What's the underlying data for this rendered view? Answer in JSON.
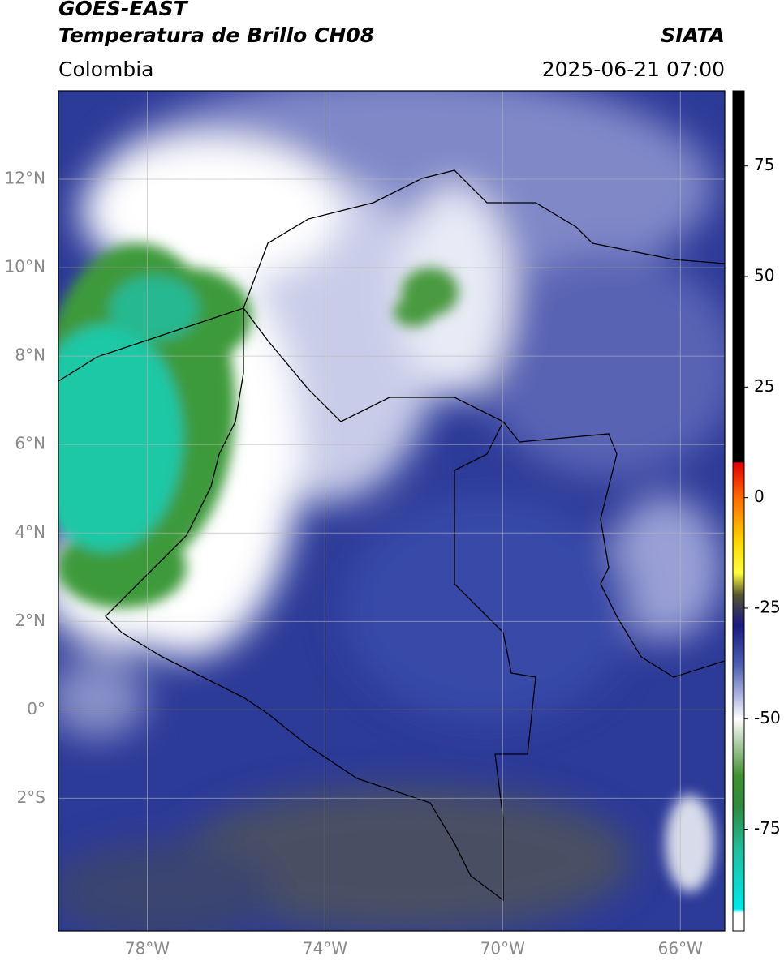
{
  "header": {
    "title": "GOES-EAST",
    "subtitle": "Temperatura de Brillo CH08",
    "source": "SIATA",
    "region": "Colombia",
    "datetime": "2025-06-21 07:00"
  },
  "map": {
    "type": "map",
    "grid": true,
    "xlim": [
      -80,
      -65
    ],
    "ylim": [
      -5,
      14
    ],
    "xticks": [
      {
        "value": -78,
        "label": "78°W"
      },
      {
        "value": -74,
        "label": "74°W"
      },
      {
        "value": -70,
        "label": "70°W"
      },
      {
        "value": -66,
        "label": "66°W"
      }
    ],
    "yticks": [
      {
        "value": 12,
        "label": "12°N"
      },
      {
        "value": 10,
        "label": "10°N"
      },
      {
        "value": 8,
        "label": "8°N"
      },
      {
        "value": 6,
        "label": "6°N"
      },
      {
        "value": 4,
        "label": "4°N"
      },
      {
        "value": 2,
        "label": "2°N"
      },
      {
        "value": 0,
        "label": "0°"
      },
      {
        "value": -2,
        "label": "2°S"
      }
    ]
  },
  "colorbar": {
    "lim": [
      -98,
      92
    ],
    "ticks": [
      75,
      50,
      25,
      0,
      -25,
      -50,
      -75
    ],
    "stops": [
      [
        92,
        "#000000"
      ],
      [
        8,
        "#000000"
      ],
      [
        7.9,
        "#e00000"
      ],
      [
        0,
        "#ff6a00"
      ],
      [
        -10,
        "#ffd800"
      ],
      [
        -17,
        "#ffff40"
      ],
      [
        -22,
        "#555530"
      ],
      [
        -26,
        "#303060"
      ],
      [
        -29,
        "#1a1a80"
      ],
      [
        -38,
        "#5060b0"
      ],
      [
        -45,
        "#b0b8e0"
      ],
      [
        -50,
        "#ffffff"
      ],
      [
        -56,
        "#a8c8a0"
      ],
      [
        -63,
        "#409030"
      ],
      [
        -70,
        "#308a40"
      ],
      [
        -80,
        "#20c0a0"
      ],
      [
        -93,
        "#00e8e8"
      ],
      [
        -94,
        "#ffffff"
      ],
      [
        -98,
        "#ffffff"
      ]
    ]
  }
}
